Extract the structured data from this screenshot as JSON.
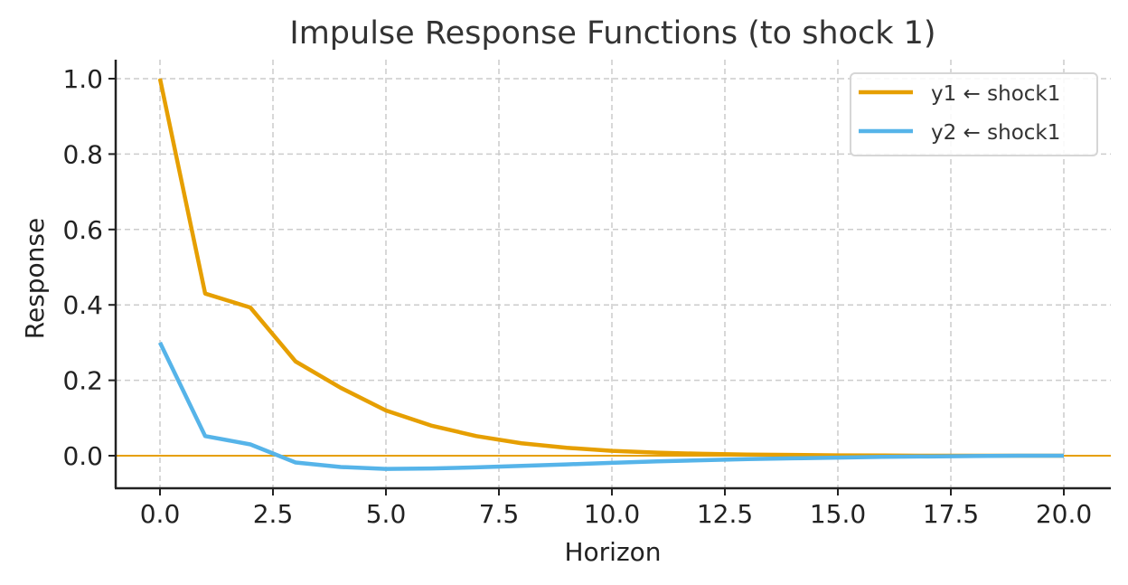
{
  "chart_data": {
    "type": "line",
    "title": "Impulse Response Functions (to shock 1)",
    "xlabel": "Horizon",
    "ylabel": "Response",
    "xlim": [
      -1,
      21
    ],
    "ylim": [
      -0.085,
      1.05
    ],
    "xticks": [
      "0.0",
      "2.5",
      "5.0",
      "7.5",
      "10.0",
      "12.5",
      "15.0",
      "17.5",
      "20.0"
    ],
    "yticks": [
      "0.0",
      "0.2",
      "0.4",
      "0.6",
      "0.8",
      "1.0"
    ],
    "grid": true,
    "legend_position": "upper right",
    "x": [
      0,
      1,
      2,
      3,
      4,
      5,
      6,
      7,
      8,
      9,
      10,
      11,
      12,
      13,
      14,
      15,
      16,
      17,
      18,
      19,
      20
    ],
    "series": [
      {
        "name": "y1 ← shock1",
        "color": "#E69F00",
        "values": [
          1.0,
          0.43,
          0.393,
          0.25,
          0.18,
          0.12,
          0.08,
          0.052,
          0.033,
          0.021,
          0.013,
          0.008,
          0.005,
          0.003,
          0.002,
          0.001,
          0.0005,
          0.0,
          0.0,
          0.0,
          0.0
        ]
      },
      {
        "name": "y2 ← shock1",
        "color": "#56B4E9",
        "values": [
          0.3,
          0.052,
          0.03,
          -0.018,
          -0.03,
          -0.035,
          -0.034,
          -0.031,
          -0.027,
          -0.023,
          -0.019,
          -0.015,
          -0.012,
          -0.009,
          -0.007,
          -0.005,
          -0.003,
          -0.002,
          -0.001,
          0.0,
          0.0
        ]
      }
    ],
    "reference_line": {
      "y": 0.0,
      "color": "#E69F00"
    }
  }
}
